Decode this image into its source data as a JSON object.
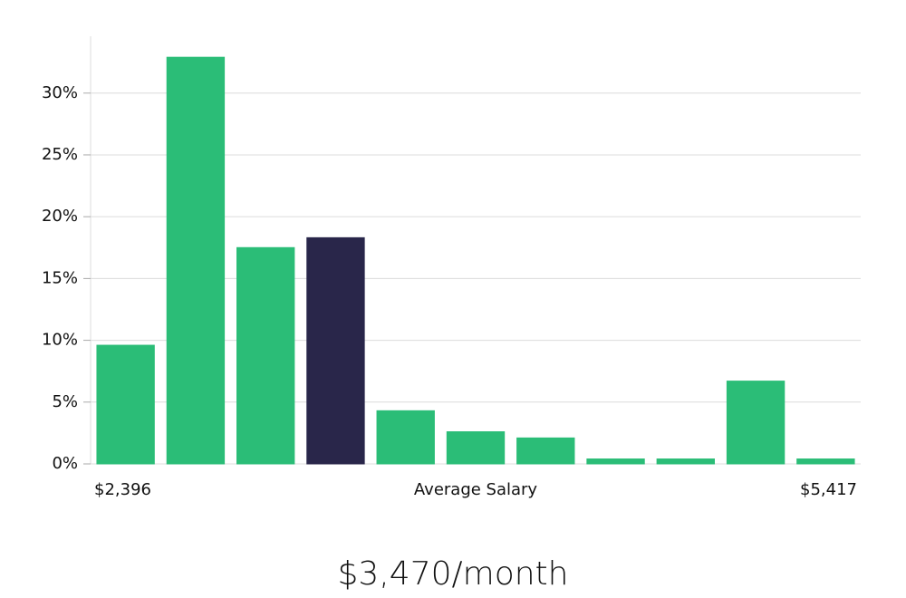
{
  "chart_data": {
    "type": "bar",
    "title": "$3,470/month",
    "xlabel": "Average Salary",
    "x_min_label": "$2,396",
    "x_max_label": "$5,417",
    "categories": [
      null,
      null,
      null,
      null,
      null,
      null,
      null,
      null,
      null,
      null,
      null
    ],
    "values": [
      9.6,
      32.9,
      17.5,
      18.3,
      4.3,
      2.6,
      2.1,
      0.4,
      0.4,
      6.7,
      0.4
    ],
    "colors": [
      "#2bbd77",
      "#2bbd77",
      "#2bbd77",
      "#29264a",
      "#2bbd77",
      "#2bbd77",
      "#2bbd77",
      "#2bbd77",
      "#2bbd77",
      "#2bbd77",
      "#2bbd77"
    ],
    "ylim": [
      0,
      34.6
    ],
    "yticks": [
      {
        "value": 0,
        "label": "0%"
      },
      {
        "value": 5,
        "label": "5%"
      },
      {
        "value": 10,
        "label": "10%"
      },
      {
        "value": 15,
        "label": "15%"
      },
      {
        "value": 20,
        "label": "20%"
      },
      {
        "value": 25,
        "label": "25%"
      },
      {
        "value": 30,
        "label": "30%"
      }
    ],
    "grid": true
  }
}
